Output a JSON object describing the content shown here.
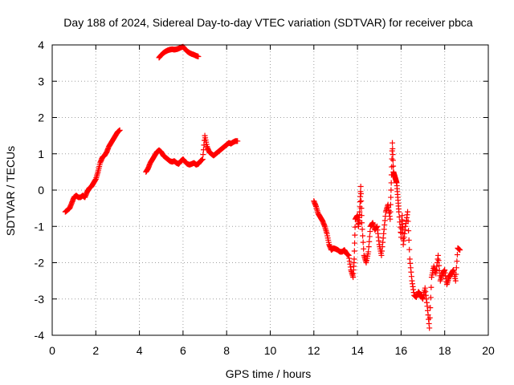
{
  "chart_data": {
    "type": "scatter",
    "title": "Day 188 of 2024, Sidereal Day-to-day VTEC variation (SDTVAR) for receiver pbca",
    "xlabel": "GPS time / hours",
    "ylabel": "SDTVAR / TECUs",
    "xlim": [
      0,
      20
    ],
    "ylim": [
      -4,
      4
    ],
    "xticks": [
      0,
      2,
      4,
      6,
      8,
      10,
      12,
      14,
      16,
      18,
      20
    ],
    "yticks": [
      -4,
      -3,
      -2,
      -1,
      0,
      1,
      2,
      3,
      4
    ],
    "grid": true,
    "legend": "none",
    "marker": "plus",
    "color": "#ff0000",
    "series": [
      {
        "x": [
          0.6,
          0.7,
          0.8,
          0.9,
          1.0,
          1.1,
          1.2,
          1.3,
          1.4,
          1.5,
          1.6,
          1.7,
          1.8,
          1.9,
          2.0,
          2.1,
          2.2,
          2.3,
          2.4,
          2.5,
          2.6,
          2.7,
          2.8,
          2.9,
          3.0,
          3.1
        ],
        "y": [
          -0.6,
          -0.55,
          -0.5,
          -0.35,
          -0.2,
          -0.15,
          -0.2,
          -0.2,
          -0.15,
          -0.2,
          -0.05,
          0.05,
          0.1,
          0.2,
          0.3,
          0.5,
          0.75,
          0.9,
          0.95,
          1.05,
          1.2,
          1.3,
          1.4,
          1.5,
          1.6,
          1.65
        ]
      },
      {
        "x": [
          4.3,
          4.4,
          4.5,
          4.6,
          4.7,
          4.8,
          4.9,
          5.0,
          5.1,
          5.2,
          5.3,
          5.4,
          5.5,
          5.6,
          5.7,
          5.8,
          5.9,
          6.0,
          6.1,
          6.2,
          6.3,
          6.4,
          6.5,
          6.6,
          6.7,
          6.8,
          6.9,
          7.0,
          7.1,
          7.2,
          7.3,
          7.4,
          7.5,
          7.6,
          7.7,
          7.8,
          7.9,
          8.0,
          8.1,
          8.2,
          8.3,
          8.4,
          8.5
        ],
        "y": [
          0.5,
          0.6,
          0.75,
          0.85,
          0.95,
          1.05,
          1.1,
          1.05,
          0.95,
          0.9,
          0.85,
          0.8,
          0.78,
          0.8,
          0.75,
          0.72,
          0.8,
          0.85,
          0.78,
          0.72,
          0.7,
          0.72,
          0.75,
          0.7,
          0.72,
          0.8,
          0.85,
          1.5,
          1.2,
          1.05,
          1.0,
          0.95,
          1.0,
          1.05,
          1.1,
          1.15,
          1.2,
          1.25,
          1.3,
          1.28,
          1.32,
          1.35,
          1.35
        ]
      },
      {
        "x": [
          4.9,
          5.0,
          5.1,
          5.2,
          5.3,
          5.4,
          5.5,
          5.6,
          5.7,
          5.8,
          5.9,
          6.0,
          6.1,
          6.2,
          6.3,
          6.4,
          6.5,
          6.6,
          6.7
        ],
        "y": [
          3.65,
          3.72,
          3.78,
          3.82,
          3.85,
          3.87,
          3.88,
          3.87,
          3.88,
          3.9,
          3.93,
          3.95,
          3.88,
          3.82,
          3.78,
          3.75,
          3.73,
          3.7,
          3.68
        ]
      },
      {
        "x": [
          12.0,
          12.1,
          12.2,
          12.3,
          12.4,
          12.5,
          12.6,
          12.7,
          12.8,
          12.9,
          13.0,
          13.1,
          13.2,
          13.3,
          13.4,
          13.5,
          13.6,
          13.7,
          13.8,
          13.85,
          13.9,
          14.0,
          14.05,
          14.1,
          14.15,
          14.2,
          14.3,
          14.4,
          14.5,
          14.6,
          14.7,
          14.8,
          14.9,
          15.0,
          15.1,
          15.2,
          15.3,
          15.4,
          15.5,
          15.55,
          15.6,
          15.65,
          15.7,
          15.75,
          15.8,
          15.85,
          15.9,
          16.0,
          16.05,
          16.1,
          16.2,
          16.3,
          16.4,
          16.5,
          16.6,
          16.7,
          16.8,
          16.9,
          17.0,
          17.1,
          17.2,
          17.3,
          17.4,
          17.5,
          17.6,
          17.7,
          17.8,
          17.9,
          18.0,
          18.1,
          18.2,
          18.3,
          18.4,
          18.5,
          18.6,
          18.7
        ],
        "y": [
          -0.3,
          -0.45,
          -0.65,
          -0.75,
          -0.85,
          -1.0,
          -1.2,
          -1.5,
          -1.65,
          -1.6,
          -1.62,
          -1.65,
          -1.7,
          -1.7,
          -1.65,
          -1.75,
          -1.8,
          -2.2,
          -2.4,
          -1.9,
          -0.8,
          -0.7,
          -1.0,
          -0.6,
          0.1,
          -0.9,
          -1.8,
          -2.0,
          -1.7,
          -1.0,
          -0.9,
          -1.1,
          -1.0,
          -1.5,
          -1.8,
          -1.2,
          -0.6,
          -0.4,
          -0.8,
          0.2,
          1.3,
          0.5,
          0.4,
          0.3,
          0.2,
          -0.2,
          -0.6,
          -1.3,
          -0.7,
          -1.5,
          -1.0,
          -0.6,
          -1.9,
          -2.5,
          -2.9,
          -2.95,
          -2.8,
          -2.9,
          -3.0,
          -2.7,
          -3.2,
          -3.8,
          -2.4,
          -2.1,
          -2.3,
          -1.8,
          -2.5,
          -2.3,
          -2.2,
          -2.6,
          -2.4,
          -2.3,
          -2.2,
          -2.5,
          -1.6,
          -1.65
        ]
      }
    ]
  }
}
